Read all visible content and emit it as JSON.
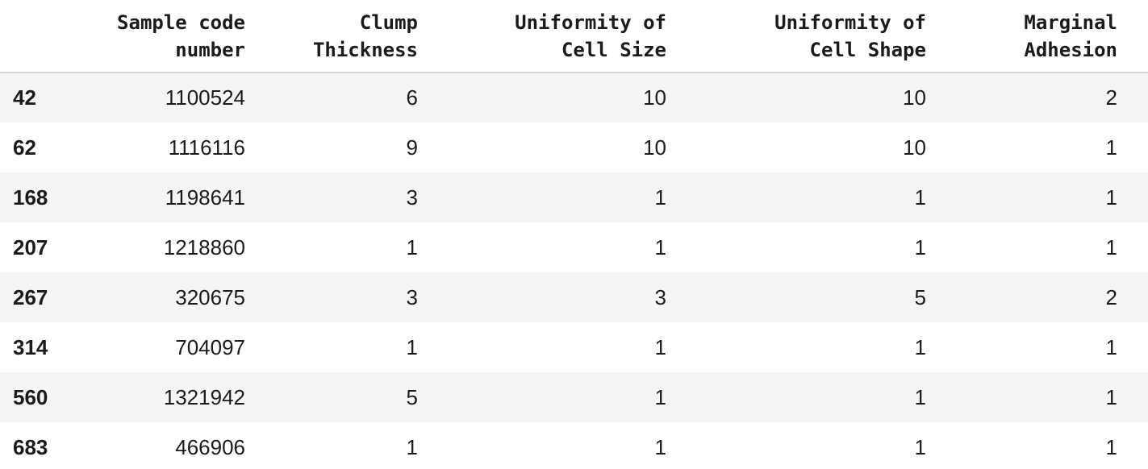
{
  "table": {
    "columns": [
      {
        "lines": [
          "Sample code",
          "number"
        ]
      },
      {
        "lines": [
          "Clump",
          "Thickness"
        ]
      },
      {
        "lines": [
          "Uniformity of",
          "Cell Size"
        ]
      },
      {
        "lines": [
          "Uniformity of",
          "Cell Shape"
        ]
      },
      {
        "lines": [
          "Marginal",
          "Adhesion"
        ]
      }
    ],
    "rows": [
      {
        "index": "42",
        "cells": [
          "1100524",
          "6",
          "10",
          "10",
          "2"
        ]
      },
      {
        "index": "62",
        "cells": [
          "1116116",
          "9",
          "10",
          "10",
          "1"
        ]
      },
      {
        "index": "168",
        "cells": [
          "1198641",
          "3",
          "1",
          "1",
          "1"
        ]
      },
      {
        "index": "207",
        "cells": [
          "1218860",
          "1",
          "1",
          "1",
          "1"
        ]
      },
      {
        "index": "267",
        "cells": [
          "320675",
          "3",
          "3",
          "5",
          "2"
        ]
      },
      {
        "index": "314",
        "cells": [
          "704097",
          "1",
          "1",
          "1",
          "1"
        ]
      },
      {
        "index": "560",
        "cells": [
          "1321942",
          "5",
          "1",
          "1",
          "1"
        ]
      },
      {
        "index": "683",
        "cells": [
          "466906",
          "1",
          "1",
          "1",
          "1"
        ]
      }
    ]
  }
}
